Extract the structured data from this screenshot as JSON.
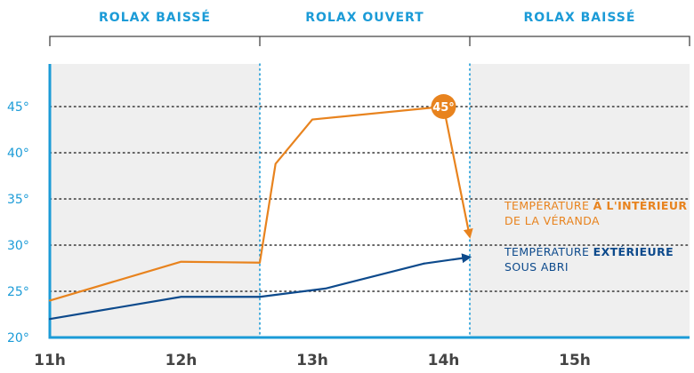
{
  "colors": {
    "inside": "#E8831E",
    "outside": "#0D4A8C",
    "accent": "#1B9BD7",
    "grid": "#333333",
    "shade": "#EFEFEF",
    "text": "#444444"
  },
  "phases": [
    {
      "label": "ROLAX BAISSÉ",
      "from": 10.55,
      "to": 12.6
    },
    {
      "label": "ROLAX OUVERT",
      "from": 12.6,
      "to": 14.2
    },
    {
      "label": "ROLAX BAISSÉ",
      "from": 14.2,
      "to": 16.2
    }
  ],
  "chart_data": {
    "type": "line",
    "xlim": [
      11,
      16.2
    ],
    "ylim": [
      20,
      47
    ],
    "x_ticks": [
      {
        "value": 11,
        "label": "11h"
      },
      {
        "value": 12,
        "label": "12h"
      },
      {
        "value": 13,
        "label": "13h"
      },
      {
        "value": 14,
        "label": "14h"
      },
      {
        "value": 15,
        "label": "15h"
      }
    ],
    "y_ticks": [
      {
        "value": 20,
        "label": "20°"
      },
      {
        "value": 25,
        "label": "25°"
      },
      {
        "value": 30,
        "label": "30°"
      },
      {
        "value": 35,
        "label": "35°"
      },
      {
        "value": 40,
        "label": "40°"
      },
      {
        "value": 45,
        "label": "45°"
      }
    ],
    "grid": "horizontal-dotted",
    "phase_boundaries": [
      12.6,
      14.2
    ],
    "series": [
      {
        "key": "inside",
        "label_lines": [
          [
            "TEMPÉRATURE ",
            "À L'INTÉRIEUR"
          ],
          [
            "DE LA VÉRANDA",
            ""
          ]
        ],
        "x": [
          11.0,
          12.0,
          12.6,
          12.72,
          13.0,
          14.0
        ],
        "y": [
          24.0,
          28.2,
          28.1,
          38.8,
          43.6,
          45.0
        ],
        "arrow_to": [
          14.2,
          30.9
        ]
      },
      {
        "key": "outside",
        "label_lines": [
          [
            "TEMPÉRATURE ",
            "EXTÉRIEURE"
          ],
          [
            "SOUS ABRI",
            ""
          ]
        ],
        "x": [
          11.0,
          12.0,
          12.6,
          13.1,
          13.85
        ],
        "y": [
          22.0,
          24.4,
          24.4,
          25.3,
          28.0
        ],
        "arrow_to": [
          14.2,
          28.7
        ]
      }
    ],
    "peak": {
      "x": 14.0,
      "y": 45.0,
      "label": "45°"
    }
  }
}
